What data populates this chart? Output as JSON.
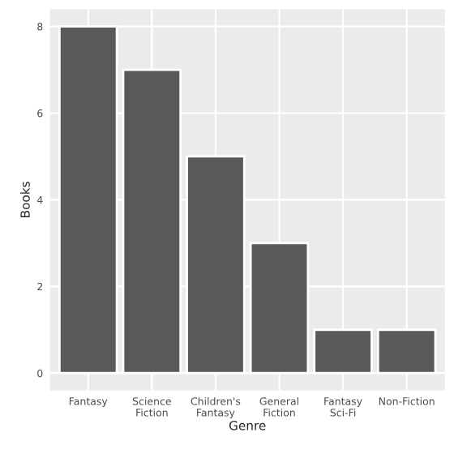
{
  "chart_data": {
    "type": "bar",
    "xlabel": "Genre",
    "ylabel": "Books",
    "categories": [
      "Fantasy",
      "Science\nFiction",
      "Children's\nFantasy",
      "General\nFiction",
      "Fantasy\nSci-Fi",
      "Non-Fiction"
    ],
    "values": [
      8,
      7,
      5,
      3,
      1,
      1
    ],
    "color": "#595959",
    "ylim": [
      -0.4,
      8.4
    ],
    "yticks": [
      0,
      2,
      4,
      6,
      8
    ],
    "grid": true,
    "legend": false
  }
}
